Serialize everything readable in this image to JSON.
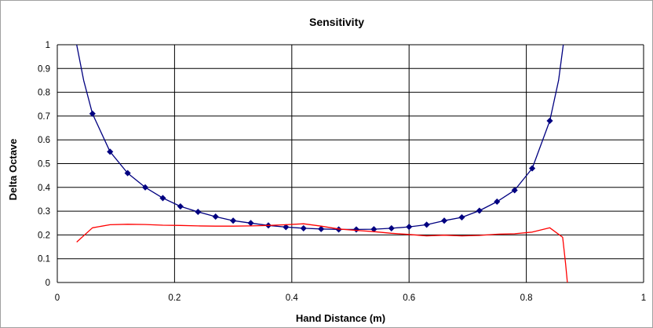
{
  "chart_data": {
    "type": "line",
    "title": "Sensitivity",
    "xlabel": "Hand Distance (m)",
    "ylabel": "Delta Octave",
    "xlim": [
      0,
      1
    ],
    "ylim": [
      0,
      1
    ],
    "x_ticks": [
      "0",
      "0.2",
      "0.4",
      "0.6",
      "0.8",
      "1"
    ],
    "y_ticks": [
      "0",
      "0.1",
      "0.2",
      "0.3",
      "0.4",
      "0.5",
      "0.6",
      "0.7",
      "0.8",
      "0.9",
      "1"
    ],
    "grid": true,
    "legend": "none",
    "series": [
      {
        "color": "#000080",
        "marker": "diamond",
        "markers_x": [
          0.06,
          0.09,
          0.12,
          0.15,
          0.18,
          0.21,
          0.24,
          0.27,
          0.3,
          0.33,
          0.36,
          0.39,
          0.42,
          0.45,
          0.48,
          0.51,
          0.54,
          0.57,
          0.6,
          0.63,
          0.66,
          0.69,
          0.72,
          0.75,
          0.78,
          0.81,
          0.84
        ],
        "markers_y": [
          0.71,
          0.55,
          0.46,
          0.4,
          0.355,
          0.32,
          0.297,
          0.277,
          0.26,
          0.25,
          0.24,
          0.233,
          0.228,
          0.225,
          0.223,
          0.223,
          0.224,
          0.228,
          0.234,
          0.243,
          0.26,
          0.274,
          0.302,
          0.34,
          0.388,
          0.48,
          0.68
        ],
        "x": [
          0.033,
          0.045,
          0.06,
          0.09,
          0.12,
          0.15,
          0.18,
          0.21,
          0.24,
          0.27,
          0.3,
          0.33,
          0.36,
          0.39,
          0.42,
          0.45,
          0.48,
          0.51,
          0.54,
          0.57,
          0.6,
          0.63,
          0.66,
          0.69,
          0.72,
          0.75,
          0.78,
          0.81,
          0.84,
          0.855,
          0.863
        ],
        "y": [
          1.0,
          0.85,
          0.71,
          0.55,
          0.46,
          0.4,
          0.355,
          0.32,
          0.297,
          0.277,
          0.26,
          0.25,
          0.24,
          0.233,
          0.228,
          0.225,
          0.223,
          0.223,
          0.224,
          0.228,
          0.234,
          0.243,
          0.26,
          0.274,
          0.302,
          0.34,
          0.388,
          0.48,
          0.68,
          0.85,
          1.0
        ]
      },
      {
        "color": "#ff0000",
        "marker": "none",
        "x": [
          0.033,
          0.06,
          0.09,
          0.12,
          0.15,
          0.18,
          0.21,
          0.24,
          0.27,
          0.3,
          0.33,
          0.36,
          0.39,
          0.42,
          0.45,
          0.48,
          0.51,
          0.54,
          0.57,
          0.6,
          0.63,
          0.66,
          0.69,
          0.72,
          0.75,
          0.78,
          0.81,
          0.84,
          0.862,
          0.867,
          0.87
        ],
        "y": [
          0.17,
          0.23,
          0.243,
          0.245,
          0.244,
          0.241,
          0.24,
          0.238,
          0.237,
          0.237,
          0.238,
          0.24,
          0.243,
          0.247,
          0.237,
          0.225,
          0.219,
          0.214,
          0.207,
          0.202,
          0.196,
          0.199,
          0.196,
          0.198,
          0.203,
          0.205,
          0.212,
          0.23,
          0.19,
          0.08,
          0.0
        ]
      }
    ]
  }
}
